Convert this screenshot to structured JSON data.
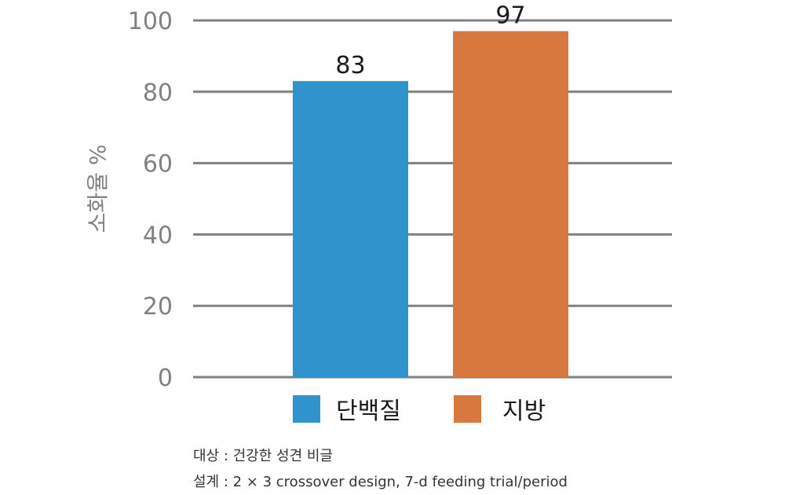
{
  "chart_data": {
    "type": "bar",
    "title": "",
    "xlabel": "",
    "ylabel": "소화율 %",
    "ylim": [
      0,
      100
    ],
    "yticks": [
      0,
      20,
      40,
      60,
      80,
      100
    ],
    "grid": true,
    "legend_position": "bottom",
    "categories": [
      "단백질",
      "지방"
    ],
    "values": [
      83,
      97
    ],
    "data_labels": [
      "83",
      "97"
    ],
    "colors": [
      "#3093cb",
      "#d8783e"
    ]
  },
  "notes": {
    "subject": "대상 : 건강한 성견 비글",
    "design": "설계 : 2 × 3 crossover design, 7-d feeding trial/period"
  }
}
